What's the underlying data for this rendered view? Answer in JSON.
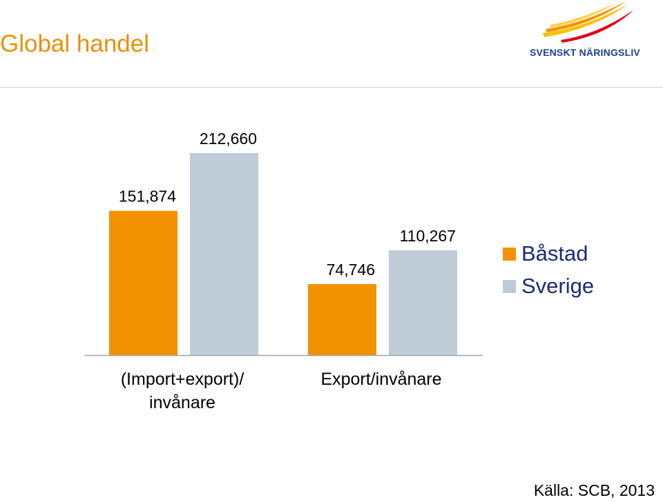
{
  "header": {
    "title": "Global handel",
    "logo_text": "SVENSKT NÄRINGSLIV"
  },
  "chart_data": {
    "type": "bar",
    "categories": [
      "(Import+export)/\ninvånare",
      "Export/invånare"
    ],
    "series": [
      {
        "name": "Båstad",
        "values": [
          151874,
          74746
        ],
        "labels": [
          "151,874",
          "74,746"
        ],
        "color": "#F39200"
      },
      {
        "name": "Sverige",
        "values": [
          212660,
          110267
        ],
        "labels": [
          "212,660",
          "110,267"
        ],
        "color": "#BFCCD8"
      }
    ],
    "ylim": [
      0,
      230000
    ],
    "grid": false,
    "legend_position": "right"
  },
  "footer": {
    "source": "Källa: SCB, 2013"
  }
}
